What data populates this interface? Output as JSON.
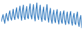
{
  "chart_data": {
    "type": "line",
    "tick_labels": false,
    "grid": false,
    "color": "#3a7fc1",
    "xlim": [
      0,
      95
    ],
    "ylim": [
      10,
      100
    ],
    "x": [
      0,
      1,
      2,
      3,
      4,
      5,
      6,
      7,
      8,
      9,
      10,
      11,
      12,
      13,
      14,
      15,
      16,
      17,
      18,
      19,
      20,
      21,
      22,
      23,
      24,
      25,
      26,
      27,
      28,
      29,
      30,
      31,
      32,
      33,
      34,
      35,
      36,
      37,
      38,
      39,
      40,
      41,
      42,
      43,
      44,
      45,
      46,
      47,
      48,
      49,
      50,
      51,
      52,
      53,
      54,
      55,
      56,
      57,
      58,
      59,
      60,
      61,
      62,
      63,
      64,
      65,
      66,
      67,
      68,
      69,
      70,
      71,
      72,
      73,
      74,
      75,
      76,
      77,
      78,
      79,
      80,
      81,
      82,
      83,
      84,
      85,
      86,
      87,
      88,
      89,
      90,
      91,
      92,
      93,
      94,
      95
    ],
    "values": [
      35,
      48,
      58,
      42,
      30,
      52,
      62,
      45,
      38,
      60,
      70,
      48,
      40,
      58,
      75,
      50,
      42,
      65,
      80,
      52,
      45,
      70,
      85,
      55,
      40,
      72,
      88,
      50,
      42,
      68,
      84,
      48,
      45,
      75,
      92,
      55,
      44,
      70,
      90,
      50,
      38,
      74,
      95,
      52,
      42,
      70,
      88,
      48,
      36,
      66,
      82,
      44,
      40,
      70,
      90,
      50,
      34,
      62,
      78,
      42,
      30,
      58,
      72,
      40,
      32,
      60,
      74,
      42,
      28,
      55,
      68,
      36,
      30,
      60,
      70,
      38,
      26,
      52,
      66,
      34,
      28,
      56,
      68,
      36,
      24,
      50,
      62,
      30,
      26,
      54,
      66,
      32,
      20,
      45,
      55,
      15
    ]
  }
}
